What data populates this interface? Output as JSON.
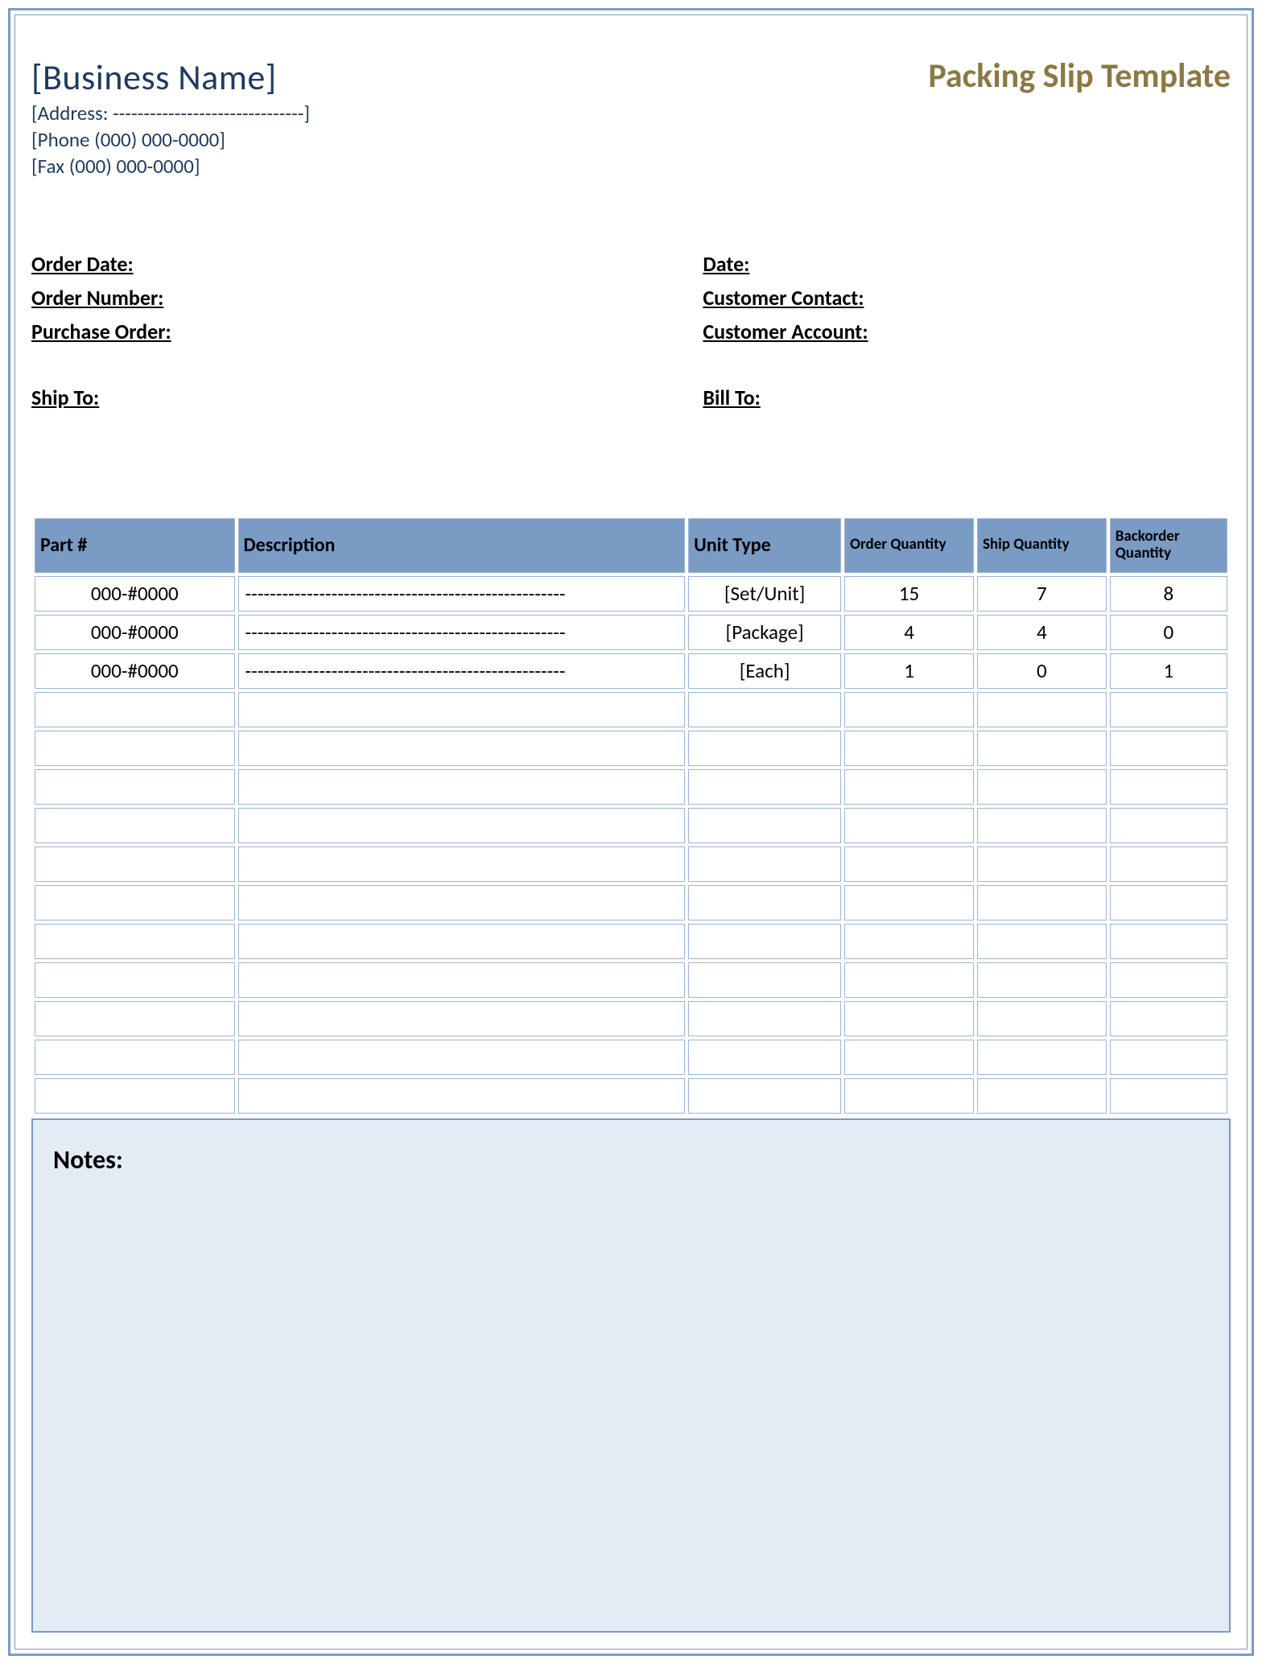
{
  "header": {
    "business_name": "[Business Name]",
    "address": "[Address: -------------------------------]",
    "phone": "[Phone (000) 000-0000]",
    "fax": "[Fax (000) 000-0000]",
    "doc_title": "Packing Slip Template"
  },
  "meta_left": {
    "order_date": "Order Date:",
    "order_number": "Order Number:",
    "purchase_order": "Purchase Order:"
  },
  "meta_right": {
    "date": "Date:",
    "customer_contact": "Customer Contact:",
    "customer_account": "Customer Account:"
  },
  "ship_to_label": "Ship To:",
  "bill_to_label": "Bill To:",
  "columns": {
    "part": "Part #",
    "description": "Description",
    "unit_type": "Unit Type",
    "order_qty": "Order Quantity",
    "ship_qty": "Ship Quantity",
    "backorder_qty": "Backorder Quantity"
  },
  "rows": [
    {
      "part": "000-#0000",
      "description": "----------------------------------------------------",
      "unit": "[Set/Unit]",
      "oq": "15",
      "sq": "7",
      "bq": "8"
    },
    {
      "part": "000-#0000",
      "description": "----------------------------------------------------",
      "unit": "[Package]",
      "oq": "4",
      "sq": "4",
      "bq": "0"
    },
    {
      "part": "000-#0000",
      "description": "----------------------------------------------------",
      "unit": "[Each]",
      "oq": "1",
      "sq": "0",
      "bq": "1"
    }
  ],
  "empty_row_count": 11,
  "notes_label": "Notes:",
  "colors": {
    "border": "#7a9bc4",
    "header_bg": "#7a9bc4",
    "notes_bg": "#e3ebf5",
    "title_color": "#8a7a42",
    "business_text": "#1f3a5f"
  }
}
